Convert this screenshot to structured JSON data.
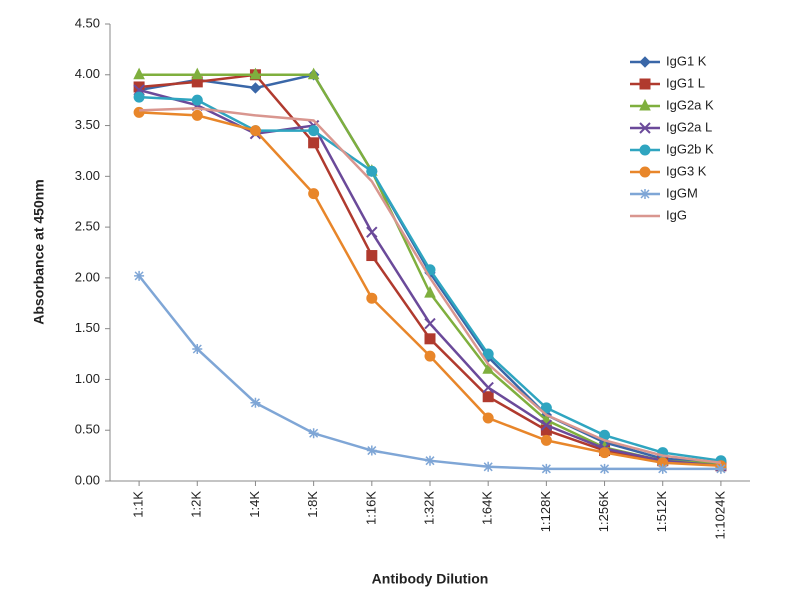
{
  "chart_data": {
    "type": "line",
    "x_label": "Antibody Dilution",
    "y_label": "Absorbance at 450nm",
    "categories": [
      "1:1K",
      "1:2K",
      "1:4K",
      "1:8K",
      "1:16K",
      "1:32K",
      "1:64K",
      "1:128K",
      "1:256K",
      "1:512K",
      "1:1024K"
    ],
    "ylim": [
      0,
      4.5
    ],
    "yticks": [
      {
        "value": 0,
        "label": "0.00"
      },
      {
        "value": 0.5,
        "label": "0.50"
      },
      {
        "value": 1,
        "label": "1.00"
      },
      {
        "value": 1.5,
        "label": "1.50"
      },
      {
        "value": 2,
        "label": "2.00"
      },
      {
        "value": 2.5,
        "label": "2.50"
      },
      {
        "value": 3,
        "label": "3.00"
      },
      {
        "value": 3.5,
        "label": "3.50"
      },
      {
        "value": 4,
        "label": "4.00"
      },
      {
        "value": 4.5,
        "label": "4.50"
      }
    ],
    "grid": false,
    "legend": "top-right",
    "series": [
      {
        "name": "IgG1 K",
        "color": "#3a67a8",
        "marker": "diamond",
        "values": [
          3.85,
          3.95,
          3.87,
          4.0,
          3.05,
          2.05,
          1.22,
          0.65,
          0.38,
          0.22,
          0.18
        ]
      },
      {
        "name": "IgG1 L",
        "color": "#b03a2e",
        "marker": "square",
        "values": [
          3.88,
          3.93,
          4.0,
          3.33,
          2.22,
          1.4,
          0.83,
          0.5,
          0.3,
          0.2,
          0.15
        ]
      },
      {
        "name": "IgG2a K",
        "color": "#7faf3e",
        "marker": "triangle",
        "values": [
          4.0,
          4.0,
          4.0,
          4.0,
          3.05,
          1.85,
          1.1,
          0.6,
          0.33,
          0.2,
          0.17
        ]
      },
      {
        "name": "IgG2a L",
        "color": "#6b4a9a",
        "marker": "x",
        "values": [
          3.85,
          3.7,
          3.42,
          3.5,
          2.45,
          1.55,
          0.92,
          0.55,
          0.32,
          0.2,
          0.15
        ]
      },
      {
        "name": "IgG2b K",
        "color": "#2fa5c0",
        "marker": "circle",
        "values": [
          3.78,
          3.75,
          3.45,
          3.45,
          3.05,
          2.08,
          1.25,
          0.72,
          0.45,
          0.28,
          0.2
        ]
      },
      {
        "name": "IgG3 K",
        "color": "#e8862a",
        "marker": "circle",
        "values": [
          3.63,
          3.6,
          3.45,
          2.83,
          1.8,
          1.23,
          0.62,
          0.4,
          0.28,
          0.18,
          0.15
        ]
      },
      {
        "name": "IgGM",
        "color": "#7fa6d6",
        "marker": "star",
        "values": [
          2.02,
          1.3,
          0.77,
          0.47,
          0.3,
          0.2,
          0.14,
          0.12,
          0.12,
          0.12,
          0.12
        ]
      },
      {
        "name": "IgG",
        "color": "#d9968f",
        "marker": "none",
        "values": [
          3.65,
          3.67,
          3.6,
          3.55,
          2.95,
          2.0,
          1.15,
          0.65,
          0.4,
          0.25,
          0.18
        ]
      }
    ]
  }
}
